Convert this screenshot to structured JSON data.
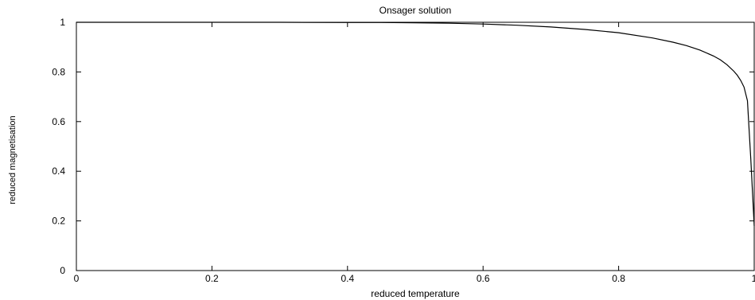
{
  "chart_data": {
    "type": "line",
    "title": "Onsager solution",
    "xlabel": "reduced temperature",
    "ylabel": "reduced magnetisation",
    "xlim": [
      0,
      1
    ],
    "ylim": [
      0,
      1
    ],
    "xticks": [
      "0",
      "0.2",
      "0.4",
      "0.6",
      "0.8",
      "1"
    ],
    "yticks": [
      "0",
      "0.2",
      "0.4",
      "0.6",
      "0.8",
      "1"
    ],
    "xtick_values": [
      0,
      0.2,
      0.4,
      0.6,
      0.8,
      1
    ],
    "ytick_values": [
      0,
      0.2,
      0.4,
      0.6,
      0.8,
      1
    ],
    "grid": false,
    "line_color": "#000000",
    "series": [
      {
        "x": [
          0,
          0.3,
          0.4,
          0.45,
          0.5,
          0.55,
          0.6,
          0.65,
          0.7,
          0.75,
          0.8,
          0.85,
          0.88,
          0.9,
          0.92,
          0.94,
          0.95,
          0.96,
          0.97,
          0.975,
          0.98,
          0.985,
          0.99,
          0.995,
          1.0
        ],
        "y": [
          1.0,
          1.0,
          0.999,
          0.999,
          0.998,
          0.996,
          0.993,
          0.988,
          0.981,
          0.971,
          0.958,
          0.937,
          0.92,
          0.906,
          0.888,
          0.864,
          0.849,
          0.829,
          0.803,
          0.787,
          0.766,
          0.739,
          0.684,
          0.45,
          0.18
        ]
      }
    ]
  }
}
